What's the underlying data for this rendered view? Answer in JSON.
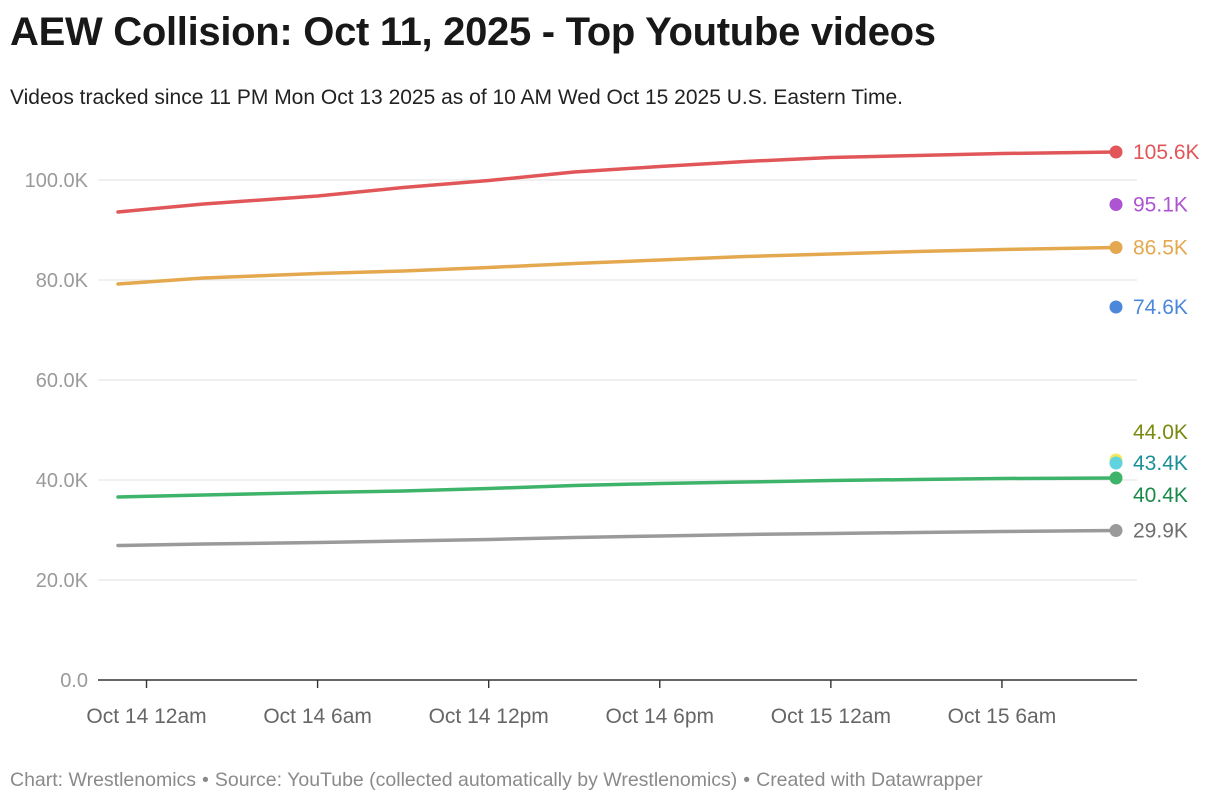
{
  "title": "AEW Collision: Oct 11, 2025 - Top Youtube videos",
  "subtitle": "Videos tracked since 11 PM Mon Oct 13 2025 as of 10 AM Wed Oct 15 2025 U.S. Eastern Time.",
  "footer": {
    "chart_credit": "Chart: Wrestlenomics",
    "source": "Source: YouTube (collected automatically by Wrestlenomics)",
    "created_with": "Created with Datawrapper",
    "separator": "•"
  },
  "chart_data": {
    "type": "line",
    "title": "AEW Collision: Oct 11, 2025 - Top Youtube videos",
    "xlabel": "",
    "ylabel": "",
    "x_range": [
      "2025-10-13 23:00",
      "2025-10-15 10:00"
    ],
    "x_ticks": [
      "2025-10-14 00:00",
      "2025-10-14 06:00",
      "2025-10-14 12:00",
      "2025-10-14 18:00",
      "2025-10-15 00:00",
      "2025-10-15 06:00"
    ],
    "x_tick_labels": [
      "Oct 14 12am",
      "Oct 14 6am",
      "Oct 14 12pm",
      "Oct 14 6pm",
      "Oct 15 12am",
      "Oct 15 6am"
    ],
    "ylim": [
      0,
      110000
    ],
    "y_ticks": [
      0,
      20000,
      40000,
      60000,
      80000,
      100000
    ],
    "y_tick_labels": [
      "0.0",
      "20.0K",
      "40.0K",
      "60.0K",
      "80.0K",
      "100.0K"
    ],
    "grid": true,
    "x": [
      "2025-10-13 23:00",
      "2025-10-14 02:00",
      "2025-10-14 06:00",
      "2025-10-14 09:00",
      "2025-10-14 12:00",
      "2025-10-14 15:00",
      "2025-10-14 18:00",
      "2025-10-14 21:00",
      "2025-10-15 00:00",
      "2025-10-15 03:00",
      "2025-10-15 06:00",
      "2025-10-15 10:00"
    ],
    "series": [
      {
        "color": "#e15759",
        "end_label": "105.6K",
        "values": [
          93600,
          95200,
          96800,
          98500,
          99900,
          101600,
          102700,
          103700,
          104500,
          104900,
          105300,
          105600
        ]
      },
      {
        "color": "#ad54d2",
        "end_label": "95.1K",
        "values": [
          null,
          null,
          null,
          null,
          null,
          null,
          null,
          null,
          null,
          null,
          null,
          95100
        ]
      },
      {
        "color": "#e4a84f",
        "end_label": "86.5K",
        "values": [
          79200,
          80400,
          81300,
          81800,
          82500,
          83300,
          84000,
          84700,
          85200,
          85700,
          86100,
          86500
        ]
      },
      {
        "color": "#4b87db",
        "end_label": "74.6K",
        "values": [
          null,
          null,
          null,
          null,
          null,
          null,
          null,
          null,
          null,
          null,
          null,
          74600
        ]
      },
      {
        "color": "#f2e85a",
        "end_label": "44.0K",
        "label_color": "#7a8a10",
        "values": [
          null,
          null,
          null,
          null,
          null,
          null,
          null,
          null,
          null,
          null,
          null,
          44000
        ]
      },
      {
        "color": "#5fd3e0",
        "end_label": "43.4K",
        "label_color": "#1a8f96",
        "values": [
          null,
          null,
          null,
          null,
          null,
          null,
          null,
          null,
          null,
          null,
          null,
          43400
        ]
      },
      {
        "color": "#3eb36a",
        "end_label": "40.4K",
        "label_color": "#1a8a4a",
        "values": [
          36600,
          37000,
          37500,
          37800,
          38300,
          38900,
          39300,
          39600,
          39900,
          40100,
          40300,
          40400
        ]
      },
      {
        "color": "#9a9a9a",
        "end_label": "29.9K",
        "label_color": "#6f6f6f",
        "values": [
          26900,
          27200,
          27500,
          27800,
          28100,
          28500,
          28800,
          29100,
          29300,
          29500,
          29700,
          29900
        ]
      }
    ]
  }
}
